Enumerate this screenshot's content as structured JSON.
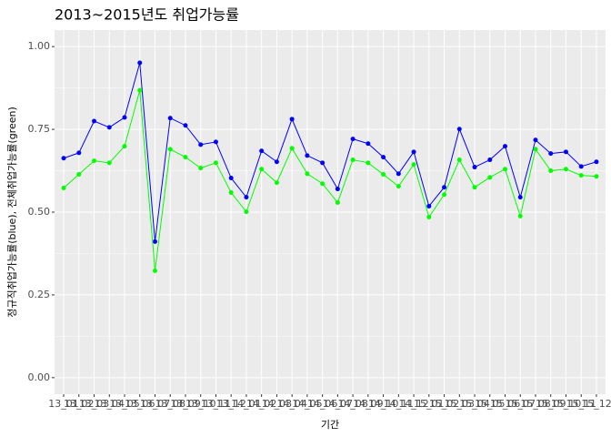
{
  "chart_data": {
    "type": "line",
    "title": "2013~2015년도 취업가능률",
    "x_label": "기간",
    "y_label": "정규직취업가능률(blue), 전체취업가능률(green)",
    "categories": [
      "13_01",
      "13_02",
      "13_03",
      "13_04",
      "13_05",
      "13_06",
      "13_07",
      "13_08",
      "13_09",
      "13_10",
      "13_11",
      "13_12",
      "14_01",
      "14_02",
      "14_03",
      "14_04",
      "14_05",
      "14_06",
      "14_07",
      "14_08",
      "14_09",
      "14_10",
      "14_11",
      "14_12",
      "15_01",
      "15_02",
      "15_03",
      "15_04",
      "15_05",
      "15_06",
      "15_07",
      "15_08",
      "15_09",
      "15_10",
      "15_11",
      "15_12"
    ],
    "series": [
      {
        "color": "#0000ff",
        "values": [
          0.663,
          0.679,
          0.775,
          0.756,
          0.786,
          0.951,
          0.411,
          0.784,
          0.762,
          0.704,
          0.712,
          0.603,
          0.545,
          0.685,
          0.652,
          0.781,
          0.671,
          0.649,
          0.57,
          0.721,
          0.707,
          0.666,
          0.616,
          0.682,
          0.518,
          0.575,
          0.751,
          0.636,
          0.658,
          0.699,
          0.545,
          0.718,
          0.677,
          0.682,
          0.638,
          0.652
        ]
      },
      {
        "color": "#00ff00",
        "values": [
          0.573,
          0.614,
          0.655,
          0.649,
          0.699,
          0.868,
          0.323,
          0.69,
          0.666,
          0.633,
          0.649,
          0.559,
          0.501,
          0.63,
          0.589,
          0.693,
          0.616,
          0.586,
          0.529,
          0.658,
          0.649,
          0.614,
          0.578,
          0.644,
          0.485,
          0.553,
          0.658,
          0.575,
          0.605,
          0.63,
          0.488,
          0.69,
          0.625,
          0.63,
          0.611,
          0.608
        ]
      }
    ],
    "ylim": [
      -0.05,
      1.05
    ],
    "yticks": [
      {
        "value": 0,
        "label": "0.00"
      },
      {
        "value": 0.25,
        "label": "0.25"
      },
      {
        "value": 0.5,
        "label": "0.50"
      },
      {
        "value": 0.75,
        "label": "0.75"
      },
      {
        "value": 1,
        "label": "1.00"
      }
    ],
    "grid": true
  }
}
